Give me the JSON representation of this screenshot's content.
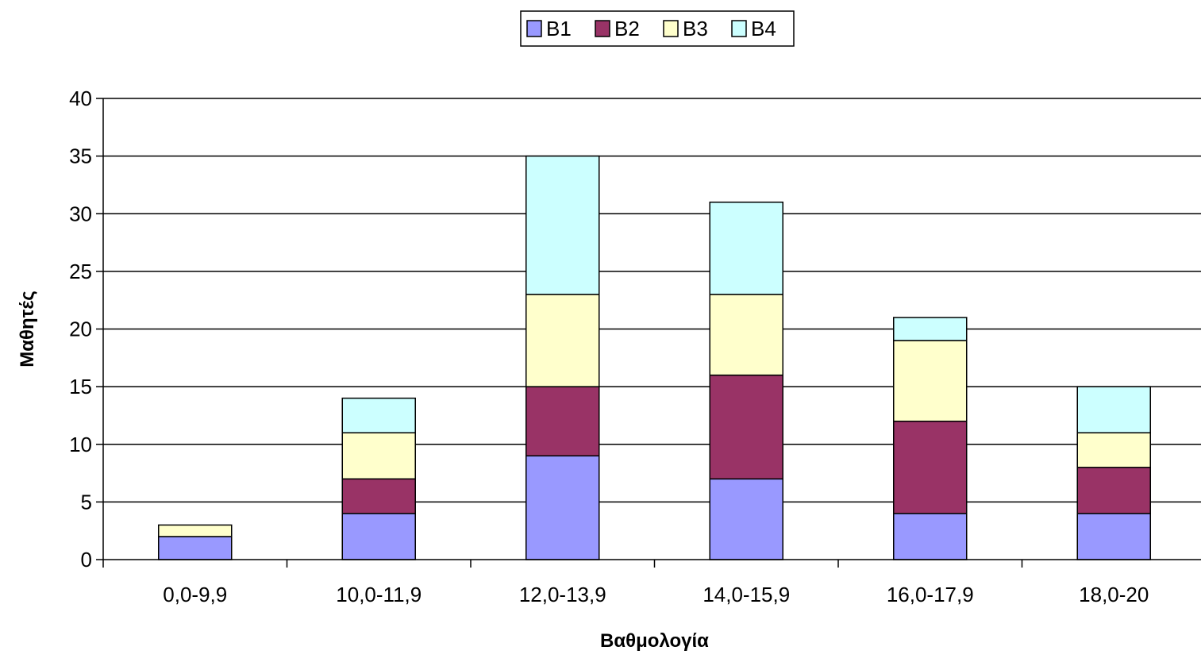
{
  "chart_data": {
    "type": "bar",
    "stacked": true,
    "categories": [
      "0,0-9,9",
      "10,0-11,9",
      "12,0-13,9",
      "14,0-15,9",
      "16,0-17,9",
      "18,0-20"
    ],
    "series": [
      {
        "name": "B1",
        "color": "#9999FF",
        "values": [
          2,
          4,
          9,
          7,
          4,
          4
        ]
      },
      {
        "name": "B2",
        "color": "#993366",
        "values": [
          0,
          3,
          6,
          9,
          8,
          4
        ]
      },
      {
        "name": "B3",
        "color": "#FFFFCC",
        "values": [
          1,
          4,
          8,
          7,
          7,
          3
        ]
      },
      {
        "name": "B4",
        "color": "#CCFFFF",
        "values": [
          0,
          3,
          12,
          8,
          2,
          4
        ]
      }
    ],
    "title": "",
    "xlabel": "Βαθμολογία",
    "ylabel": "Μαθητές",
    "ylim": [
      0,
      40
    ],
    "yticks": [
      0,
      5,
      10,
      15,
      20,
      25,
      30,
      35,
      40
    ],
    "grid": true,
    "legend_position": "top"
  }
}
